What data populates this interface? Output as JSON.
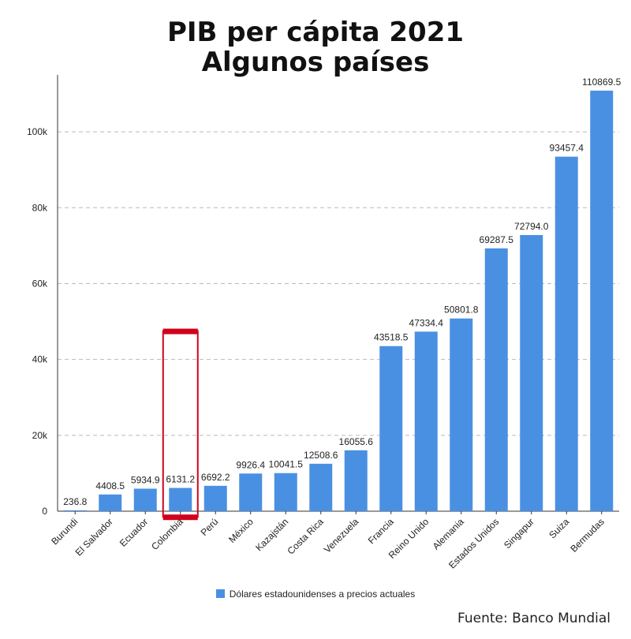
{
  "chart_data": {
    "type": "bar",
    "title_lines": [
      "PIB per cápita 2021",
      "Algunos países"
    ],
    "categories": [
      "Burundi",
      "El Salvador",
      "Ecuador",
      "Colombia",
      "Perú",
      "México",
      "Kazajstán",
      "Costa Rica",
      "Venezuela",
      "Francia",
      "Reino Unido",
      "Alemania",
      "Estados Unidos",
      "Singapur",
      "Suiza",
      "Bermudas"
    ],
    "series": [
      {
        "name": "Dólares estadounidenses a precios actuales",
        "values": [
          236.8,
          4408.5,
          5934.9,
          6131.2,
          6692.2,
          9926.4,
          10041.5,
          12508.6,
          16055.6,
          43518.5,
          47334.4,
          50801.8,
          69287.5,
          72794.0,
          93457.4,
          110869.5
        ],
        "value_labels": [
          "236.8",
          "4408.5",
          "5934.9",
          "6131.2",
          "6692.2",
          "9926.4",
          "10041.5",
          "12508.6",
          "16055.6",
          "43518.5",
          "47334.4",
          "50801.8",
          "69287.5",
          "72794.0",
          "93457.4",
          "110869.5"
        ],
        "color": "#4a90e2"
      }
    ],
    "y_ticks": [
      0,
      20000,
      40000,
      60000,
      80000,
      100000
    ],
    "y_tick_labels": [
      "0",
      "20k",
      "40k",
      "60k",
      "80k",
      "100k"
    ],
    "ylim": [
      0,
      115000
    ],
    "grid": true,
    "legend_position": "bottom-center",
    "highlight": {
      "category": "Colombia",
      "color": "#d0021b",
      "top_value": 47500,
      "bottom_value": -1500
    },
    "source": "Fuente: Banco Mundial"
  }
}
